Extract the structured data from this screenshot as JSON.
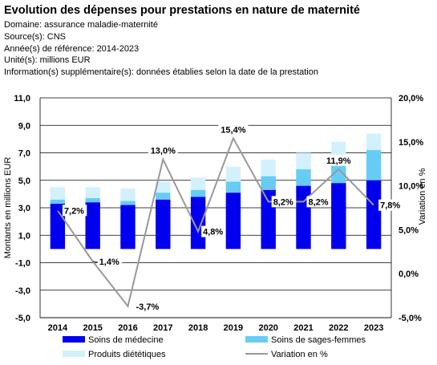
{
  "header": {
    "title": "Evolution des dépenses pour prestations en nature de maternité",
    "domain": "Domaine: assurance maladie-maternité",
    "source": "Source(s): CNS",
    "years": "Année(s) de référence: 2014-2023",
    "unit": "Unité(s): millions EUR",
    "info": "Information(s) supplémentaire(s): données établies selon la date de la prestation"
  },
  "chart_data": {
    "type": "bar",
    "stacked": true,
    "categories": [
      "2014",
      "2015",
      "2016",
      "2017",
      "2018",
      "2019",
      "2020",
      "2021",
      "2022",
      "2023"
    ],
    "ylabel": "Montants en millions EUR",
    "y2label": "Variation en %",
    "ylim": [
      -5.0,
      11.0
    ],
    "y_ticks": [
      "11,0",
      "9,0",
      "7,0",
      "5,0",
      "3,0",
      "1,0",
      "-1,0",
      "-3,0",
      "-5,0"
    ],
    "y2lim": [
      -5.0,
      20.0
    ],
    "y2_ticks": [
      "20,0%",
      "15,0%",
      "10,0%",
      "5,0%",
      "0,0%",
      "-5,0%"
    ],
    "grid": true,
    "legend_position": "bottom",
    "series": [
      {
        "name": "Soins de médecine",
        "color": "#0000ee",
        "values": [
          3.3,
          3.4,
          3.2,
          3.6,
          3.8,
          4.1,
          4.3,
          4.6,
          4.8,
          5.0
        ]
      },
      {
        "name": "Soins de sages-femmes",
        "color": "#66ccf5",
        "values": [
          0.3,
          0.3,
          0.3,
          0.5,
          0.5,
          0.8,
          1.0,
          1.2,
          1.9,
          2.2
        ]
      },
      {
        "name": "Produits diététiques",
        "color": "#d3f0fd",
        "values": [
          0.9,
          0.8,
          0.9,
          0.8,
          0.9,
          1.1,
          1.2,
          1.2,
          1.1,
          1.2
        ]
      }
    ],
    "line": {
      "name": "Variation en %",
      "color": "#999999",
      "axis": "right",
      "values": [
        7.2,
        1.4,
        -3.7,
        13.0,
        4.8,
        15.4,
        8.2,
        8.2,
        11.9,
        7.8
      ],
      "labels": [
        "7,2%",
        "1,4%",
        "-3,7%",
        "13,0%",
        "4,8%",
        "15,4%",
        "8,2%",
        "8,2%",
        "11,9%",
        "7,8%"
      ]
    }
  }
}
